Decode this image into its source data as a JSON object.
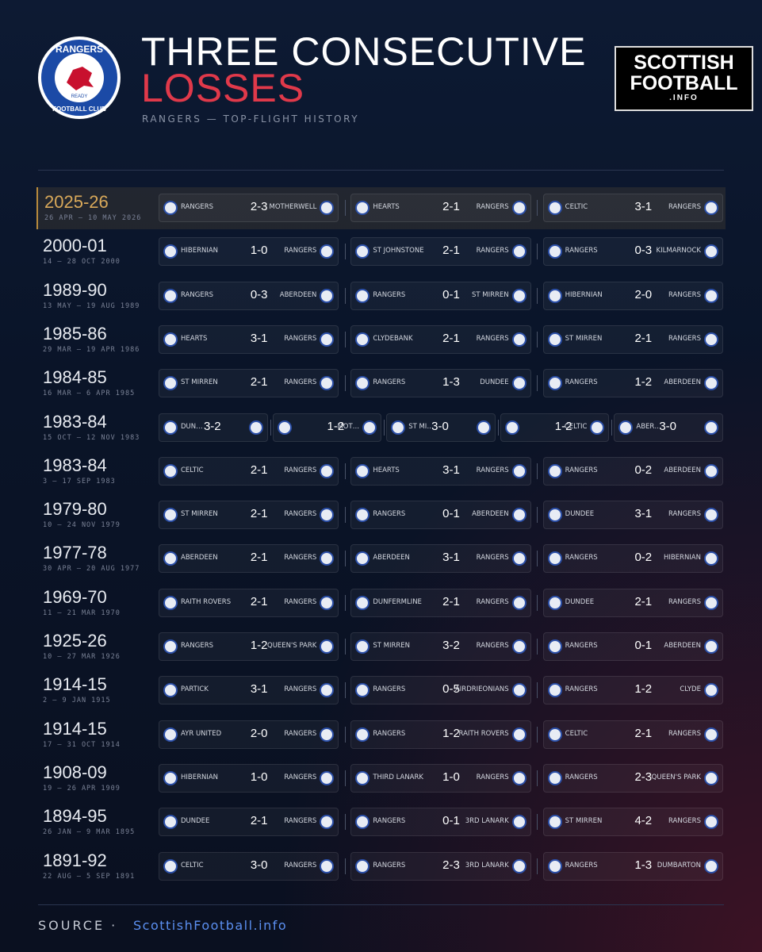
{
  "header": {
    "title_line1": "THREE CONSECUTIVE",
    "title_line2": "LOSSES",
    "subtitle": "RANGERS — TOP-FLIGHT HISTORY",
    "crest": {
      "top": "RANGERS",
      "bottom": "FOOTBALL CLUB",
      "motto": "READY"
    },
    "brand": {
      "line1": "SCOTTISH",
      "line2": "FOOTBALL",
      "line3": ".INFO"
    }
  },
  "rows": [
    {
      "season": "2025-26",
      "dates": "26 APR — 10 MAY 2026",
      "highlight": true,
      "matches": [
        {
          "home": "RANGERS",
          "score": "2-3",
          "away": "MOTHERWELL"
        },
        {
          "home": "HEARTS",
          "score": "2-1",
          "away": "RANGERS"
        },
        {
          "home": "CELTIC",
          "score": "3-1",
          "away": "RANGERS"
        }
      ]
    },
    {
      "season": "2000-01",
      "dates": "14 — 28 OCT 2000",
      "matches": [
        {
          "home": "HIBERNIAN",
          "score": "1-0",
          "away": "RANGERS"
        },
        {
          "home": "ST JOHNSTONE",
          "score": "2-1",
          "away": "RANGERS"
        },
        {
          "home": "RANGERS",
          "score": "0-3",
          "away": "KILMARNOCK"
        }
      ]
    },
    {
      "season": "1989-90",
      "dates": "13 MAY — 19 AUG 1989",
      "matches": [
        {
          "home": "RANGERS",
          "score": "0-3",
          "away": "ABERDEEN"
        },
        {
          "home": "RANGERS",
          "score": "0-1",
          "away": "ST MIRREN"
        },
        {
          "home": "HIBERNIAN",
          "score": "2-0",
          "away": "RANGERS"
        }
      ]
    },
    {
      "season": "1985-86",
      "dates": "29 MAR — 19 APR 1986",
      "matches": [
        {
          "home": "HEARTS",
          "score": "3-1",
          "away": "RANGERS"
        },
        {
          "home": "CLYDEBANK",
          "score": "2-1",
          "away": "RANGERS"
        },
        {
          "home": "ST MIRREN",
          "score": "2-1",
          "away": "RANGERS"
        }
      ]
    },
    {
      "season": "1984-85",
      "dates": "16 MAR — 6 APR 1985",
      "matches": [
        {
          "home": "ST MIRREN",
          "score": "2-1",
          "away": "RANGERS"
        },
        {
          "home": "RANGERS",
          "score": "1-3",
          "away": "DUNDEE"
        },
        {
          "home": "RANGERS",
          "score": "1-2",
          "away": "ABERDEEN"
        }
      ]
    },
    {
      "season": "1983-84",
      "dates": "15 OCT — 12 NOV 1983",
      "matches": [
        {
          "home": "DUN…",
          "score": "3-2"
        },
        {
          "score": "1-2",
          "away": "MOT…"
        },
        {
          "home": "ST MI…",
          "score": "3-0"
        },
        {
          "score": "1-2",
          "away": "CELTIC"
        },
        {
          "home": "ABER…",
          "score": "3-0"
        }
      ]
    },
    {
      "season": "1983-84",
      "dates": "3 — 17 SEP 1983",
      "matches": [
        {
          "home": "CELTIC",
          "score": "2-1",
          "away": "RANGERS"
        },
        {
          "home": "HEARTS",
          "score": "3-1",
          "away": "RANGERS"
        },
        {
          "home": "RANGERS",
          "score": "0-2",
          "away": "ABERDEEN"
        }
      ]
    },
    {
      "season": "1979-80",
      "dates": "10 — 24 NOV 1979",
      "matches": [
        {
          "home": "ST MIRREN",
          "score": "2-1",
          "away": "RANGERS"
        },
        {
          "home": "RANGERS",
          "score": "0-1",
          "away": "ABERDEEN"
        },
        {
          "home": "DUNDEE",
          "score": "3-1",
          "away": "RANGERS"
        }
      ]
    },
    {
      "season": "1977-78",
      "dates": "30 APR — 20 AUG 1977",
      "matches": [
        {
          "home": "ABERDEEN",
          "score": "2-1",
          "away": "RANGERS"
        },
        {
          "home": "ABERDEEN",
          "score": "3-1",
          "away": "RANGERS"
        },
        {
          "home": "RANGERS",
          "score": "0-2",
          "away": "HIBERNIAN"
        }
      ]
    },
    {
      "season": "1969-70",
      "dates": "11 — 21 MAR 1970",
      "matches": [
        {
          "home": "RAITH ROVERS",
          "score": "2-1",
          "away": "RANGERS"
        },
        {
          "home": "DUNFERMLINE",
          "score": "2-1",
          "away": "RANGERS"
        },
        {
          "home": "DUNDEE",
          "score": "2-1",
          "away": "RANGERS"
        }
      ]
    },
    {
      "season": "1925-26",
      "dates": "10 — 27 MAR 1926",
      "matches": [
        {
          "home": "RANGERS",
          "score": "1-2",
          "away": "QUEEN'S PARK"
        },
        {
          "home": "ST MIRREN",
          "score": "3-2",
          "away": "RANGERS"
        },
        {
          "home": "RANGERS",
          "score": "0-1",
          "away": "ABERDEEN"
        }
      ]
    },
    {
      "season": "1914-15",
      "dates": "2 — 9 JAN 1915",
      "matches": [
        {
          "home": "PARTICK",
          "score": "3-1",
          "away": "RANGERS"
        },
        {
          "home": "RANGERS",
          "score": "0-5",
          "away": "AIRDRIEONIANS"
        },
        {
          "home": "RANGERS",
          "score": "1-2",
          "away": "CLYDE"
        }
      ]
    },
    {
      "season": "1914-15",
      "dates": "17 — 31 OCT 1914",
      "matches": [
        {
          "home": "AYR UNITED",
          "score": "2-0",
          "away": "RANGERS"
        },
        {
          "home": "RANGERS",
          "score": "1-2",
          "away": "RAITH ROVERS"
        },
        {
          "home": "CELTIC",
          "score": "2-1",
          "away": "RANGERS"
        }
      ]
    },
    {
      "season": "1908-09",
      "dates": "19 — 26 APR 1909",
      "matches": [
        {
          "home": "HIBERNIAN",
          "score": "1-0",
          "away": "RANGERS"
        },
        {
          "home": "THIRD LANARK",
          "score": "1-0",
          "away": "RANGERS"
        },
        {
          "home": "RANGERS",
          "score": "2-3",
          "away": "QUEEN'S PARK"
        }
      ]
    },
    {
      "season": "1894-95",
      "dates": "26 JAN — 9 MAR 1895",
      "matches": [
        {
          "home": "DUNDEE",
          "score": "2-1",
          "away": "RANGERS"
        },
        {
          "home": "RANGERS",
          "score": "0-1",
          "away": "3RD LANARK"
        },
        {
          "home": "ST MIRREN",
          "score": "4-2",
          "away": "RANGERS"
        }
      ]
    },
    {
      "season": "1891-92",
      "dates": "22 AUG — 5 SEP 1891",
      "matches": [
        {
          "home": "CELTIC",
          "score": "3-0",
          "away": "RANGERS"
        },
        {
          "home": "RANGERS",
          "score": "2-3",
          "away": "3RD LANARK"
        },
        {
          "home": "RANGERS",
          "score": "1-3",
          "away": "DUMBARTON"
        }
      ]
    }
  ],
  "footer": {
    "label": "SOURCE ·",
    "link": "ScottishFootball.info"
  }
}
